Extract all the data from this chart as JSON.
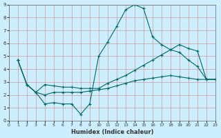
{
  "xlabel": "Humidex (Indice chaleur)",
  "ylabel": "",
  "bg_color": "#cceeff",
  "grid_color": "#cc9999",
  "line_color": "#006666",
  "xlim": [
    0,
    23
  ],
  "ylim": [
    0,
    9
  ],
  "xticks": [
    0,
    1,
    2,
    3,
    4,
    5,
    6,
    7,
    8,
    9,
    10,
    11,
    12,
    13,
    14,
    15,
    16,
    17,
    18,
    19,
    20,
    21,
    22,
    23
  ],
  "yticks": [
    0,
    1,
    2,
    3,
    4,
    5,
    6,
    7,
    8,
    9
  ],
  "line1_x": [
    1,
    2,
    3,
    4,
    5,
    6,
    7,
    8,
    9,
    10,
    11,
    12,
    13,
    14,
    15,
    16,
    17,
    18,
    19,
    20,
    21,
    22,
    23
  ],
  "line1_y": [
    4.7,
    2.8,
    2.2,
    1.3,
    1.4,
    1.3,
    1.3,
    0.5,
    1.3,
    5.0,
    6.1,
    7.3,
    8.6,
    9.0,
    8.7,
    6.5,
    5.9,
    5.5,
    5.3,
    4.7,
    4.2,
    3.2,
    3.2
  ],
  "line2_x": [
    1,
    2,
    3,
    4,
    5,
    6,
    7,
    8,
    9,
    10,
    11,
    12,
    13,
    14,
    15,
    16,
    17,
    18,
    19,
    20,
    21,
    22,
    23
  ],
  "line2_y": [
    4.7,
    2.8,
    2.2,
    2.8,
    2.7,
    2.6,
    2.6,
    2.5,
    2.5,
    2.5,
    2.9,
    3.2,
    3.5,
    3.9,
    4.3,
    4.7,
    5.1,
    5.5,
    5.9,
    5.6,
    5.4,
    3.2,
    3.2
  ],
  "line3_x": [
    1,
    2,
    3,
    4,
    5,
    6,
    7,
    8,
    9,
    10,
    11,
    12,
    13,
    14,
    15,
    16,
    17,
    18,
    19,
    20,
    21,
    22,
    23
  ],
  "line3_y": [
    4.7,
    2.8,
    2.2,
    2.0,
    2.2,
    2.2,
    2.2,
    2.2,
    2.3,
    2.4,
    2.5,
    2.7,
    2.9,
    3.1,
    3.2,
    3.3,
    3.4,
    3.5,
    3.4,
    3.3,
    3.2,
    3.2,
    3.2
  ]
}
